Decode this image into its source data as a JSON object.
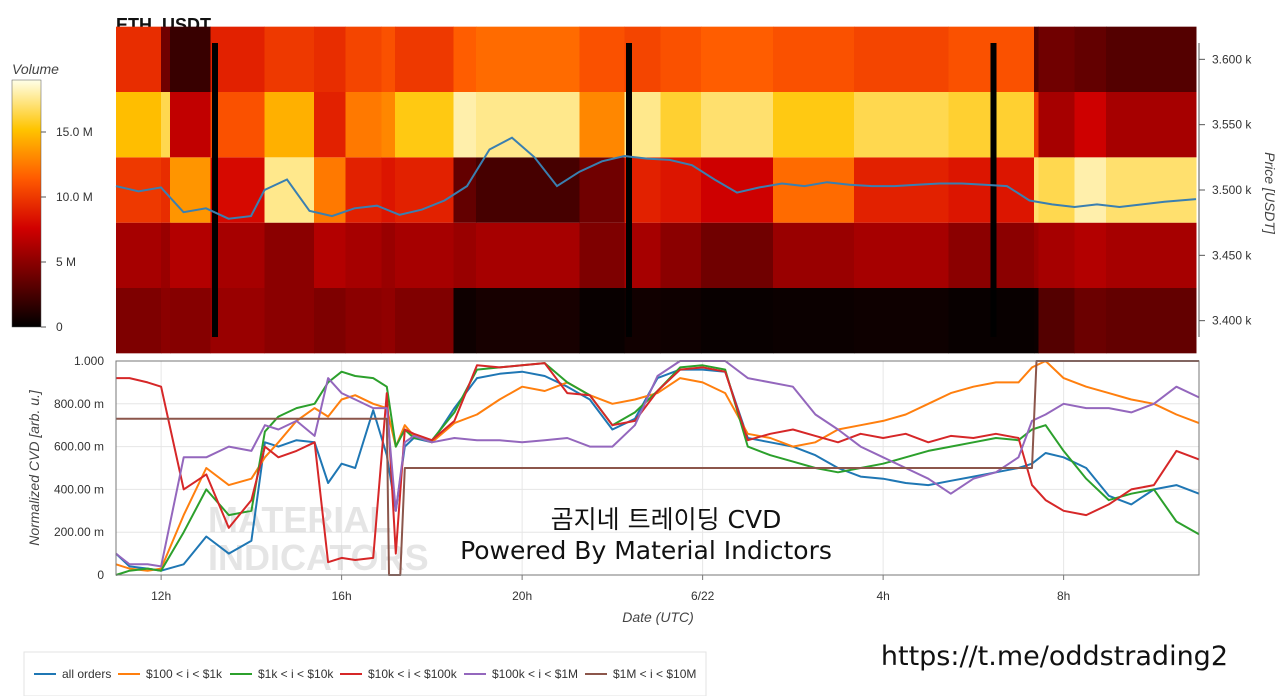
{
  "chart_data": [
    {
      "type": "heatmap",
      "title": "ETH_USDT",
      "ylabel": "Price [USDT]",
      "ylim": [
        3.3875,
        3.6125
      ],
      "yticks": [
        "3.400 k",
        "3.450 k",
        "3.500 k",
        "3.550 k",
        "3.600 k"
      ],
      "ytick_values": [
        3.4,
        3.45,
        3.5,
        3.55,
        3.6
      ],
      "x_range_hours": [
        11,
        35
      ],
      "price_bands": [
        3.4,
        3.45,
        3.5,
        3.55,
        3.6
      ],
      "colorbar": {
        "label": "Volume",
        "range": [
          0,
          19
        ],
        "ticks": [
          "0",
          "5 M",
          "10.0 M",
          "15.0 M"
        ],
        "tick_values": [
          0,
          5,
          10,
          15
        ]
      },
      "volume_segments": [
        {
          "x": [
            11.0,
            12.0,
            12.2,
            13.1,
            14.3,
            15.4,
            16.1,
            16.9,
            17.2,
            18.5,
            19.0,
            21.3,
            22.3,
            23.1,
            24.0,
            25.6,
            27.4,
            29.5,
            31.4,
            31.5,
            32.3,
            33.0,
            35.0
          ],
          "v": [
            4.5,
            5.0,
            4.8,
            5.5,
            5.0,
            4.5,
            5.0,
            5.2,
            4.6,
            0.5,
            0.8,
            0.3,
            0.6,
            0.5,
            0.3,
            0.4,
            0.5,
            0.3,
            0.4,
            3.0,
            3.8,
            3.5
          ]
        },
        {
          "x": [
            11.0,
            12.0,
            12.2,
            13.1,
            14.3,
            15.4,
            16.1,
            16.9,
            17.2,
            18.5,
            19.0,
            21.3,
            22.3,
            23.1,
            24.0,
            25.6,
            27.4,
            29.5,
            31.4,
            31.5,
            32.3,
            33.0,
            35.0
          ],
          "v": [
            6.0,
            5.5,
            6.5,
            6.0,
            5.0,
            6.5,
            6.0,
            5.5,
            6.0,
            5.5,
            6.0,
            4.5,
            6.0,
            5.0,
            4.0,
            5.5,
            6.0,
            5.0,
            5.5,
            6.0,
            6.5,
            6.0
          ]
        },
        {
          "x": [
            11.0,
            12.0,
            12.2,
            13.1,
            14.3,
            15.4,
            16.1,
            16.9,
            17.2,
            18.5,
            19.0,
            21.3,
            22.3,
            23.1,
            24.0,
            25.6,
            27.4,
            29.5,
            31.4,
            31.5,
            32.3,
            33.0,
            35.0
          ],
          "v": [
            10.0,
            9.5,
            13.5,
            8.0,
            17.5,
            12.5,
            9.0,
            8.5,
            9.0,
            3.5,
            2.5,
            4.0,
            9.0,
            8.5,
            7.5,
            12.0,
            9.0,
            8.5,
            17.0,
            16.5,
            18.0,
            17.0
          ]
        },
        {
          "x": [
            11.0,
            12.0,
            12.2,
            13.1,
            14.3,
            15.4,
            16.1,
            16.9,
            17.2,
            18.5,
            19.0,
            21.3,
            22.3,
            23.1,
            24.0,
            25.6,
            27.4,
            29.5,
            31.4,
            31.5,
            32.3,
            33.0,
            35.0
          ],
          "v": [
            15.0,
            16.5,
            7.0,
            11.0,
            14.5,
            9.0,
            12.5,
            13.0,
            15.5,
            18.0,
            17.5,
            13.0,
            17.5,
            16.0,
            17.0,
            15.5,
            16.5,
            16.0,
            10.0,
            6.0,
            7.5,
            6.0
          ]
        },
        {
          "x": [
            11.0,
            12.0,
            12.2,
            13.1,
            14.3,
            15.4,
            16.1,
            16.9,
            17.2,
            18.5,
            19.0,
            21.3,
            22.3,
            23.1,
            24.0,
            25.6,
            27.4,
            29.5,
            31.4,
            31.5,
            32.3,
            33.0,
            35.0
          ],
          "v": [
            9.5,
            4.0,
            2.0,
            9.0,
            10.0,
            9.5,
            10.5,
            11.0,
            10.0,
            11.5,
            12.0,
            11.0,
            10.5,
            11.0,
            11.5,
            11.0,
            10.5,
            11.0,
            3.0,
            4.0,
            3.5,
            3.0
          ]
        }
      ],
      "gaps_hours": [
        13.2,
        22.4,
        30.5
      ],
      "price_line": {
        "x": [
          11.0,
          11.5,
          12.0,
          12.5,
          13.0,
          13.5,
          14.0,
          14.3,
          14.8,
          15.3,
          15.8,
          16.3,
          16.8,
          17.3,
          17.8,
          18.3,
          18.8,
          19.3,
          19.8,
          20.3,
          20.8,
          21.3,
          21.8,
          22.3,
          22.8,
          23.3,
          23.8,
          24.3,
          24.8,
          25.3,
          25.8,
          26.3,
          26.8,
          27.3,
          27.8,
          28.3,
          28.8,
          29.3,
          29.8,
          30.3,
          30.8,
          31.3,
          31.8,
          32.3,
          32.8,
          33.3,
          33.8,
          34.3,
          35.0
        ],
        "y": [
          3.503,
          3.499,
          3.502,
          3.483,
          3.486,
          3.478,
          3.48,
          3.5,
          3.508,
          3.484,
          3.48,
          3.486,
          3.488,
          3.481,
          3.485,
          3.492,
          3.503,
          3.531,
          3.54,
          3.525,
          3.503,
          3.514,
          3.522,
          3.526,
          3.524,
          3.523,
          3.519,
          3.508,
          3.498,
          3.502,
          3.505,
          3.503,
          3.506,
          3.504,
          3.503,
          3.503,
          3.504,
          3.505,
          3.505,
          3.504,
          3.503,
          3.492,
          3.489,
          3.487,
          3.489,
          3.487,
          3.489,
          3.491,
          3.493
        ]
      }
    },
    {
      "type": "line",
      "xlabel": "Date (UTC)",
      "ylabel": "Normalized CVD [arb. u.]",
      "ylim": [
        0,
        1
      ],
      "xlim_hours": [
        11,
        35
      ],
      "xticks": [
        "12h",
        "16h",
        "20h",
        "6/22",
        "4h",
        "8h"
      ],
      "xtick_hours": [
        12,
        16,
        20,
        24,
        28,
        32
      ],
      "yticks": [
        "0",
        "200.00 m",
        "400.00 m",
        "600.00 m",
        "800.00 m",
        "1.000"
      ],
      "ytick_values": [
        0,
        0.2,
        0.4,
        0.6,
        0.8,
        1.0
      ],
      "grid": true,
      "legend_position": "bottom",
      "series": [
        {
          "name": "all orders",
          "color": "#1f77b4",
          "x": [
            11.0,
            11.3,
            11.7,
            12.0,
            12.5,
            13.0,
            13.5,
            14.0,
            14.3,
            14.6,
            15.0,
            15.4,
            15.7,
            16.0,
            16.3,
            16.7,
            17.0,
            17.2,
            17.4,
            17.6,
            18.0,
            18.5,
            19.0,
            19.5,
            20.0,
            20.5,
            21.0,
            21.5,
            22.0,
            22.5,
            23.0,
            23.5,
            24.0,
            24.5,
            25.0,
            25.5,
            26.0,
            26.5,
            27.0,
            27.5,
            28.0,
            28.5,
            29.0,
            29.5,
            30.0,
            30.5,
            31.0,
            31.3,
            31.6,
            32.0,
            32.5,
            33.0,
            33.5,
            34.0,
            34.5,
            35.0
          ],
          "y": [
            0.1,
            0.04,
            0.03,
            0.02,
            0.05,
            0.18,
            0.1,
            0.16,
            0.62,
            0.6,
            0.63,
            0.62,
            0.43,
            0.52,
            0.5,
            0.77,
            0.56,
            0.3,
            0.6,
            0.64,
            0.62,
            0.78,
            0.92,
            0.94,
            0.95,
            0.93,
            0.88,
            0.82,
            0.68,
            0.73,
            0.92,
            0.96,
            0.96,
            0.95,
            0.64,
            0.62,
            0.6,
            0.56,
            0.5,
            0.46,
            0.45,
            0.43,
            0.42,
            0.44,
            0.46,
            0.48,
            0.5,
            0.52,
            0.57,
            0.55,
            0.5,
            0.37,
            0.33,
            0.4,
            0.42,
            0.38
          ]
        },
        {
          "name": "$100 < i < $1k",
          "color": "#ff7f0e",
          "x": [
            11.0,
            11.3,
            11.7,
            12.0,
            12.5,
            13.0,
            13.5,
            14.0,
            14.3,
            14.6,
            15.0,
            15.4,
            15.7,
            16.0,
            16.3,
            16.7,
            17.0,
            17.2,
            17.4,
            17.6,
            18.0,
            18.5,
            19.0,
            19.5,
            20.0,
            20.5,
            21.0,
            21.5,
            22.0,
            22.5,
            23.0,
            23.5,
            24.0,
            24.5,
            25.0,
            25.5,
            26.0,
            26.5,
            27.0,
            27.5,
            28.0,
            28.5,
            29.0,
            29.5,
            30.0,
            30.5,
            31.0,
            31.3,
            31.6,
            32.0,
            32.5,
            33.0,
            33.5,
            34.0,
            34.5,
            35.0
          ],
          "y": [
            0.05,
            0.03,
            0.02,
            0.03,
            0.28,
            0.5,
            0.42,
            0.45,
            0.55,
            0.62,
            0.72,
            0.78,
            0.74,
            0.82,
            0.84,
            0.8,
            0.78,
            0.6,
            0.7,
            0.65,
            0.62,
            0.71,
            0.75,
            0.82,
            0.88,
            0.86,
            0.9,
            0.84,
            0.8,
            0.82,
            0.85,
            0.92,
            0.9,
            0.85,
            0.66,
            0.64,
            0.6,
            0.62,
            0.68,
            0.7,
            0.72,
            0.75,
            0.8,
            0.85,
            0.88,
            0.9,
            0.9,
            0.97,
            1.0,
            0.92,
            0.88,
            0.85,
            0.82,
            0.8,
            0.75,
            0.71
          ]
        },
        {
          "name": "$1k < i < $10k",
          "color": "#2ca02c",
          "x": [
            11.0,
            11.3,
            11.7,
            12.0,
            12.5,
            13.0,
            13.5,
            14.0,
            14.3,
            14.6,
            15.0,
            15.4,
            15.7,
            16.0,
            16.3,
            16.7,
            17.0,
            17.2,
            17.4,
            17.6,
            18.0,
            18.5,
            19.0,
            19.5,
            20.0,
            20.5,
            21.0,
            21.5,
            22.0,
            22.5,
            23.0,
            23.5,
            24.0,
            24.5,
            25.0,
            25.5,
            26.0,
            26.5,
            27.0,
            27.5,
            28.0,
            28.5,
            29.0,
            29.5,
            30.0,
            30.5,
            31.0,
            31.3,
            31.6,
            32.0,
            32.5,
            33.0,
            33.5,
            34.0,
            34.5,
            35.0
          ],
          "y": [
            0.0,
            0.02,
            0.03,
            0.02,
            0.2,
            0.4,
            0.28,
            0.3,
            0.67,
            0.74,
            0.78,
            0.8,
            0.9,
            0.95,
            0.93,
            0.92,
            0.88,
            0.6,
            0.68,
            0.64,
            0.63,
            0.76,
            0.96,
            0.97,
            0.98,
            0.99,
            0.9,
            0.84,
            0.7,
            0.76,
            0.86,
            0.97,
            0.98,
            0.96,
            0.6,
            0.56,
            0.53,
            0.5,
            0.48,
            0.5,
            0.52,
            0.55,
            0.58,
            0.6,
            0.62,
            0.64,
            0.63,
            0.68,
            0.7,
            0.58,
            0.45,
            0.35,
            0.38,
            0.4,
            0.25,
            0.19
          ]
        },
        {
          "name": "$10k < i < $100k",
          "color": "#d62728",
          "x": [
            11.0,
            11.3,
            11.7,
            12.0,
            12.5,
            13.0,
            13.5,
            14.0,
            14.3,
            14.6,
            15.0,
            15.4,
            15.7,
            16.0,
            16.3,
            16.7,
            17.0,
            17.2,
            17.4,
            17.6,
            18.0,
            18.5,
            19.0,
            19.5,
            20.0,
            20.5,
            21.0,
            21.5,
            22.0,
            22.5,
            23.0,
            23.5,
            24.0,
            24.5,
            25.0,
            25.5,
            26.0,
            26.5,
            27.0,
            27.5,
            28.0,
            28.5,
            29.0,
            29.5,
            30.0,
            30.5,
            31.0,
            31.3,
            31.6,
            32.0,
            32.5,
            33.0,
            33.5,
            34.0,
            34.5,
            35.0
          ],
          "y": [
            0.92,
            0.92,
            0.9,
            0.88,
            0.4,
            0.47,
            0.22,
            0.35,
            0.6,
            0.55,
            0.58,
            0.62,
            0.06,
            0.08,
            0.07,
            0.08,
            0.85,
            0.1,
            0.68,
            0.66,
            0.63,
            0.72,
            0.98,
            0.97,
            0.98,
            0.99,
            0.85,
            0.84,
            0.7,
            0.72,
            0.86,
            0.96,
            0.97,
            0.95,
            0.63,
            0.66,
            0.68,
            0.65,
            0.62,
            0.66,
            0.64,
            0.66,
            0.62,
            0.65,
            0.64,
            0.66,
            0.64,
            0.42,
            0.35,
            0.3,
            0.28,
            0.33,
            0.4,
            0.42,
            0.58,
            0.54
          ]
        },
        {
          "name": "$100k < i < $1M",
          "color": "#9467bd",
          "x": [
            11.0,
            11.3,
            11.7,
            12.0,
            12.5,
            13.0,
            13.5,
            14.0,
            14.3,
            14.6,
            15.0,
            15.4,
            15.7,
            16.0,
            16.3,
            16.7,
            17.0,
            17.2,
            17.4,
            17.6,
            18.0,
            18.5,
            19.0,
            19.5,
            20.0,
            20.5,
            21.0,
            21.5,
            22.0,
            22.5,
            23.0,
            23.5,
            24.0,
            24.5,
            25.0,
            25.5,
            26.0,
            26.5,
            27.0,
            27.5,
            28.0,
            28.5,
            29.0,
            29.5,
            30.0,
            30.5,
            31.0,
            31.3,
            31.6,
            32.0,
            32.5,
            33.0,
            33.5,
            34.0,
            34.5,
            35.0
          ],
          "y": [
            0.1,
            0.05,
            0.05,
            0.04,
            0.55,
            0.55,
            0.6,
            0.58,
            0.7,
            0.68,
            0.72,
            0.65,
            0.92,
            0.85,
            0.82,
            0.78,
            0.78,
            0.3,
            0.62,
            0.65,
            0.62,
            0.64,
            0.63,
            0.63,
            0.62,
            0.63,
            0.64,
            0.6,
            0.6,
            0.7,
            0.93,
            1.0,
            1.0,
            1.0,
            0.92,
            0.9,
            0.88,
            0.75,
            0.68,
            0.6,
            0.55,
            0.5,
            0.45,
            0.38,
            0.45,
            0.48,
            0.55,
            0.72,
            0.75,
            0.8,
            0.78,
            0.78,
            0.76,
            0.8,
            0.88,
            0.83
          ]
        },
        {
          "name": "$1M < i < $10M",
          "color": "#8c564b",
          "x": [
            11.0,
            12.1,
            12.1,
            14.7,
            16.3,
            16.9,
            17.0,
            17.05,
            17.2,
            17.3,
            17.4,
            17.45,
            17.5,
            27.0,
            31.2,
            31.3,
            31.4,
            35.0
          ],
          "y": [
            0.73,
            0.73,
            0.73,
            0.73,
            0.73,
            0.73,
            0.73,
            0.0,
            0.0,
            0.0,
            0.5,
            0.5,
            0.5,
            0.5,
            0.5,
            0.5,
            1.0,
            1.0
          ]
        }
      ]
    }
  ],
  "annotation": {
    "line1": "곰지네 트레이딩 CVD",
    "line2": "Powered By Material Indictors"
  },
  "watermark": {
    "line1": "MATERIAL",
    "line2": "INDICATORS"
  },
  "footer_url": "https://t.me/oddstrading2"
}
